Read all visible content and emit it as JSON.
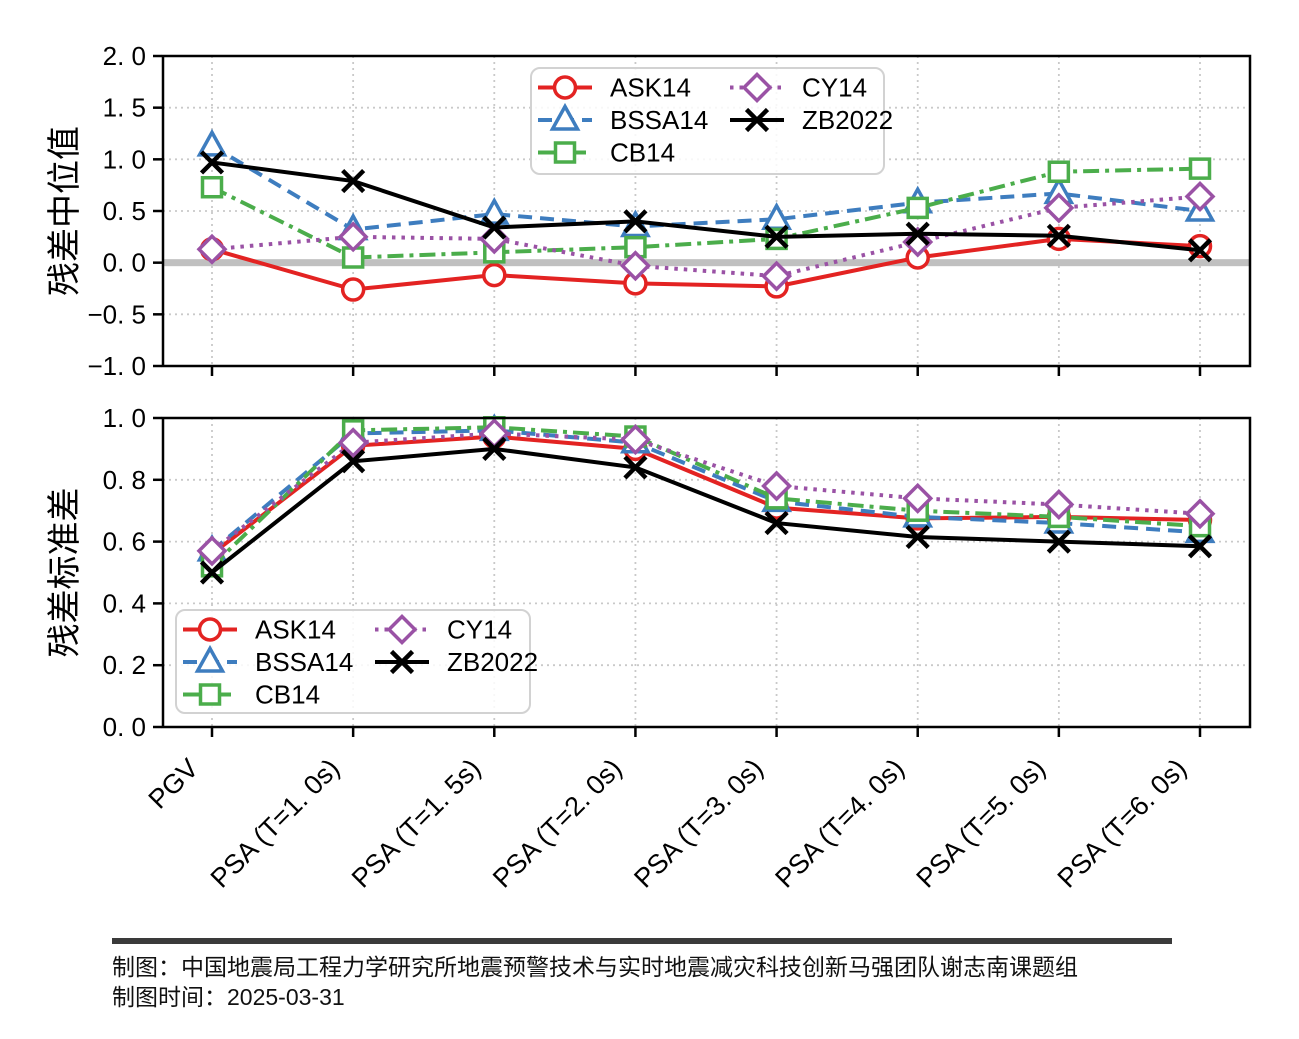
{
  "figure": {
    "background": "#ffffff",
    "frame_color": "#000000",
    "grid_color": "#c9c9c9",
    "zero_band_color": "#c0c0c0"
  },
  "series_styles": {
    "ASK14": {
      "color": "#e32322",
      "linestyle": "solid",
      "marker": "circle"
    },
    "BSSA14": {
      "color": "#3e7dbf",
      "linestyle": "dashed",
      "marker": "triangle"
    },
    "CB14": {
      "color": "#4bad4b",
      "linestyle": "dashdot",
      "marker": "square"
    },
    "CY14": {
      "color": "#9a52a5",
      "linestyle": "dotted",
      "marker": "diamond"
    },
    "ZB2022": {
      "color": "#000000",
      "linestyle": "solid",
      "marker": "x"
    }
  },
  "chart_data": [
    {
      "type": "line",
      "title": "",
      "xlabel": "",
      "ylabel": "残差中位值",
      "ylim": [
        -1.0,
        2.0
      ],
      "grid": true,
      "zero_band": true,
      "legend_position": "upper center, 2 columns",
      "categories": [
        "PGV",
        "PSA (T=1. 0s)",
        "PSA (T=1. 5s)",
        "PSA (T=2. 0s)",
        "PSA (T=3. 0s)",
        "PSA (T=4. 0s)",
        "PSA (T=5. 0s)",
        "PSA (T=6. 0s)"
      ],
      "yticks": [
        {
          "v": 2.0,
          "label": "2. 0"
        },
        {
          "v": 1.5,
          "label": "1. 5"
        },
        {
          "v": 1.0,
          "label": "1. 0"
        },
        {
          "v": 0.5,
          "label": "0. 5"
        },
        {
          "v": 0.0,
          "label": "0. 0"
        },
        {
          "v": -0.5,
          "label": "−0. 5"
        },
        {
          "v": -1.0,
          "label": "−1. 0"
        }
      ],
      "series": [
        {
          "name": "ASK14",
          "values": [
            0.13,
            -0.26,
            -0.12,
            -0.2,
            -0.23,
            0.05,
            0.23,
            0.16
          ]
        },
        {
          "name": "BSSA14",
          "values": [
            1.13,
            0.32,
            0.47,
            0.35,
            0.42,
            0.58,
            0.67,
            0.5
          ]
        },
        {
          "name": "CB14",
          "values": [
            0.73,
            0.05,
            0.1,
            0.15,
            0.23,
            0.53,
            0.88,
            0.91
          ]
        },
        {
          "name": "CY14",
          "values": [
            0.13,
            0.25,
            0.23,
            -0.03,
            -0.13,
            0.2,
            0.53,
            0.64
          ]
        },
        {
          "name": "ZB2022",
          "values": [
            0.97,
            0.79,
            0.34,
            0.4,
            0.25,
            0.28,
            0.26,
            0.12
          ]
        }
      ]
    },
    {
      "type": "line",
      "title": "",
      "xlabel": "",
      "ylabel": "残差标准差",
      "ylim": [
        0.0,
        1.0
      ],
      "grid": true,
      "zero_band": false,
      "legend_position": "lower left, 2 columns",
      "categories": [
        "PGV",
        "PSA (T=1. 0s)",
        "PSA (T=1. 5s)",
        "PSA (T=2. 0s)",
        "PSA (T=3. 0s)",
        "PSA (T=4. 0s)",
        "PSA (T=5. 0s)",
        "PSA (T=6. 0s)"
      ],
      "yticks": [
        {
          "v": 1.0,
          "label": "1. 0"
        },
        {
          "v": 0.8,
          "label": "0. 8"
        },
        {
          "v": 0.6,
          "label": "0. 6"
        },
        {
          "v": 0.4,
          "label": "0. 4"
        },
        {
          "v": 0.2,
          "label": "0. 2"
        },
        {
          "v": 0.0,
          "label": "0. 0"
        }
      ],
      "series": [
        {
          "name": "ASK14",
          "values": [
            0.56,
            0.91,
            0.94,
            0.9,
            0.71,
            0.675,
            0.68,
            0.67
          ]
        },
        {
          "name": "BSSA14",
          "values": [
            0.57,
            0.95,
            0.96,
            0.92,
            0.73,
            0.68,
            0.66,
            0.63
          ]
        },
        {
          "name": "CB14",
          "values": [
            0.52,
            0.96,
            0.97,
            0.94,
            0.74,
            0.7,
            0.68,
            0.65
          ]
        },
        {
          "name": "CY14",
          "values": [
            0.57,
            0.92,
            0.95,
            0.93,
            0.78,
            0.74,
            0.72,
            0.69
          ]
        },
        {
          "name": "ZB2022",
          "values": [
            0.5,
            0.86,
            0.9,
            0.84,
            0.66,
            0.615,
            0.6,
            0.585
          ]
        }
      ]
    }
  ],
  "footer": {
    "credit_line": "制图：中国地震局工程力学研究所地震预警技术与实时地震减灾科技创新马强团队谢志南课题组",
    "date_line": "制图时间：2025-03-31"
  }
}
